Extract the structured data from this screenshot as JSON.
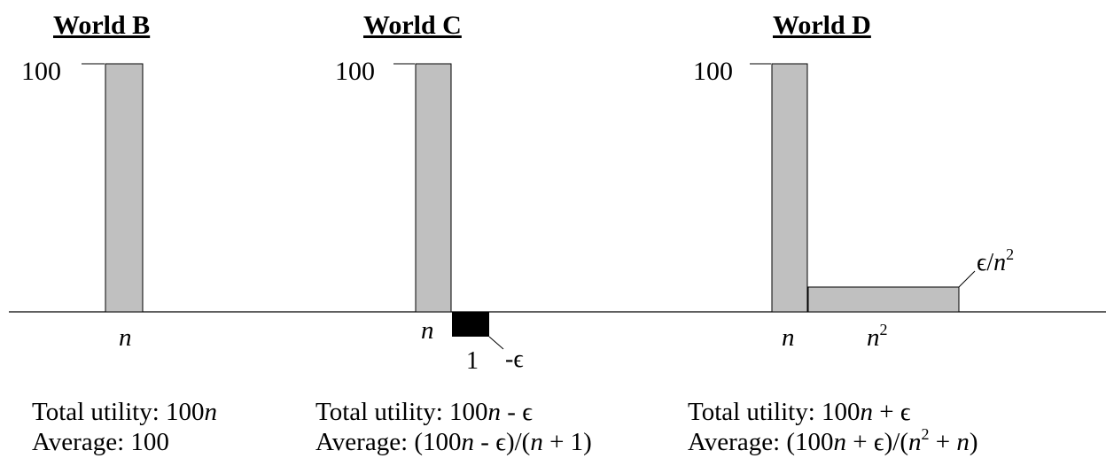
{
  "axis": {
    "peak_label": "100"
  },
  "worlds": [
    {
      "title": "World B",
      "bars": [
        {
          "label": "n",
          "width_label": "n",
          "value": 100,
          "color": "#c0c0c0"
        }
      ],
      "total_prefix": "Total utility: ",
      "total_expr": "100n",
      "average_prefix": "Average: ",
      "average_expr": "100"
    },
    {
      "title": "World C",
      "bars": [
        {
          "width_label": "n",
          "value": 100,
          "color": "#c0c0c0"
        },
        {
          "width_label": "1",
          "value_label": "-ϵ",
          "color": "#000000"
        }
      ],
      "total_prefix": "Total utility: ",
      "total_expr": "100n - ϵ",
      "average_prefix": "Average: ",
      "average_expr": "(100n - ϵ)/(n + 1)"
    },
    {
      "title": "World D",
      "bars": [
        {
          "width_label": "n",
          "value": 100,
          "color": "#c0c0c0"
        },
        {
          "width_label": "n",
          "width_label_sup": "2",
          "value_label": "ϵ/n",
          "value_label_sup": "2",
          "color": "#c0c0c0"
        }
      ],
      "total_prefix": "Total utility: ",
      "total_expr": "100n + ϵ",
      "average_prefix": "Average: ",
      "average_expr": "(100n + ϵ)/(n² + n)"
    }
  ]
}
